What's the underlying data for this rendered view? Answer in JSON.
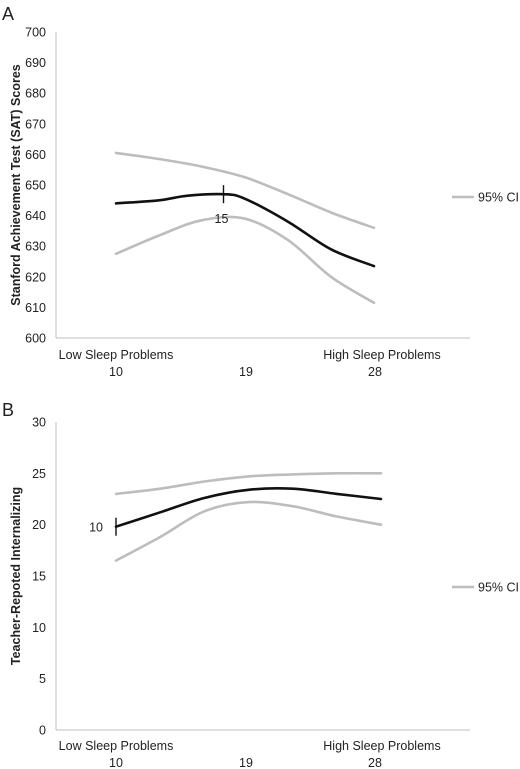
{
  "colors": {
    "estimate": "#111111",
    "ci": "#bdbdbd",
    "axis": "#bfbfbf",
    "text": "#222222"
  },
  "chart_data": [
    {
      "panel_label": "A",
      "type": "line",
      "ylabel": "Stanford Achievement Test (SAT) Scores",
      "ylim": [
        600,
        700
      ],
      "yticks": [
        600,
        610,
        620,
        630,
        640,
        650,
        660,
        670,
        680,
        690,
        700
      ],
      "xlim": [
        10,
        28
      ],
      "xticks": [
        10,
        19,
        28
      ],
      "x_end_labels": [
        "Low Sleep Problems",
        "High Sleep Problems"
      ],
      "grid": false,
      "legend_position": "right",
      "legend_label": "95% CI",
      "marker": {
        "x": 17.5,
        "label": "15"
      },
      "series": [
        {
          "role": "upper_ci",
          "x": [
            10,
            13,
            16,
            19,
            22,
            25,
            28
          ],
          "values": [
            660.5,
            658.5,
            656.0,
            652.5,
            647.0,
            641.0,
            636.0
          ]
        },
        {
          "role": "estimate",
          "x": [
            10,
            13,
            15,
            17.5,
            19,
            22,
            25,
            28
          ],
          "values": [
            644.0,
            645.0,
            646.5,
            647.0,
            645.5,
            638.0,
            629.0,
            623.5
          ]
        },
        {
          "role": "lower_ci",
          "x": [
            10,
            13,
            16,
            19,
            22,
            25,
            28
          ],
          "values": [
            627.5,
            633.5,
            638.5,
            639.0,
            632.0,
            620.0,
            611.5
          ]
        }
      ]
    },
    {
      "panel_label": "B",
      "type": "line",
      "ylabel": "Teacher-Repoted Internalizing",
      "ylim": [
        0,
        30
      ],
      "yticks": [
        0,
        5,
        10,
        15,
        20,
        25,
        30
      ],
      "xlim": [
        10,
        28
      ],
      "xticks": [
        10,
        19,
        28
      ],
      "x_end_labels": [
        "Low Sleep Problems",
        "High Sleep Problems"
      ],
      "grid": false,
      "legend_position": "right",
      "legend_label": "95% CI",
      "marker": {
        "x": 10,
        "label": "10"
      },
      "series": [
        {
          "role": "upper_ci",
          "x": [
            10,
            13,
            16,
            19,
            22,
            25,
            28
          ],
          "values": [
            23.0,
            23.5,
            24.2,
            24.7,
            24.9,
            25.0,
            25.0
          ]
        },
        {
          "role": "estimate",
          "x": [
            10,
            13,
            16,
            19,
            22,
            25,
            28
          ],
          "values": [
            19.8,
            21.2,
            22.6,
            23.4,
            23.5,
            23.0,
            22.5
          ]
        },
        {
          "role": "lower_ci",
          "x": [
            10,
            13,
            16,
            19,
            22,
            25,
            28
          ],
          "values": [
            16.5,
            18.8,
            21.3,
            22.2,
            21.8,
            20.8,
            20.0
          ]
        }
      ]
    }
  ]
}
